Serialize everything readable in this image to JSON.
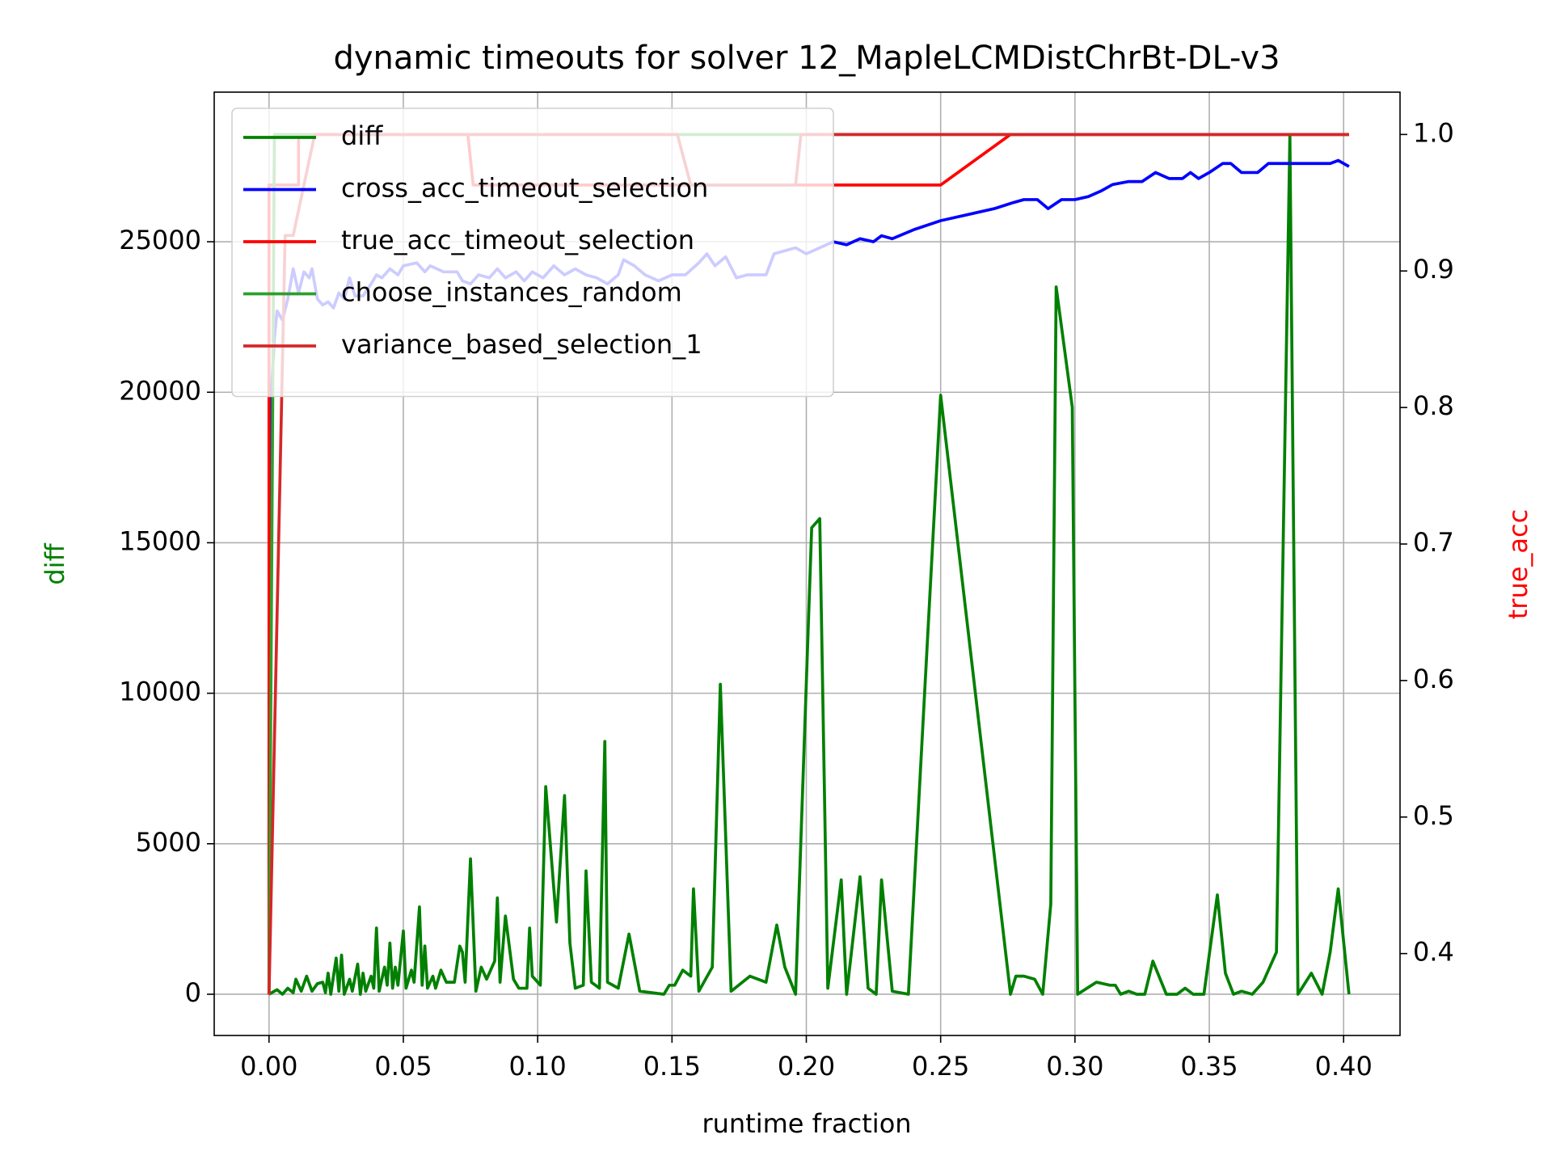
{
  "chart_data": {
    "type": "line",
    "title": "dynamic timeouts for solver 12_MapleLCMDistChrBt-DL-v3",
    "x_label": "runtime fraction",
    "y_label": "diff",
    "y2_label": "true_acc",
    "y_label_color": "#008000",
    "y2_label_color": "#ff0000",
    "xlim": [
      -0.0204,
      0.421
    ],
    "ylim": [
      -1370,
      29970
    ],
    "y2lim": [
      0.34,
      1.031
    ],
    "xticks": [
      {
        "value": 0,
        "label": "0.00"
      },
      {
        "value": 0.05,
        "label": "0.05"
      },
      {
        "value": 0.1,
        "label": "0.10"
      },
      {
        "value": 0.15,
        "label": "0.15"
      },
      {
        "value": 0.2,
        "label": "0.20"
      },
      {
        "value": 0.25,
        "label": "0.25"
      },
      {
        "value": 0.3,
        "label": "0.30"
      },
      {
        "value": 0.35,
        "label": "0.35"
      },
      {
        "value": 0.4,
        "label": "0.40"
      }
    ],
    "yticks": [
      0,
      5000,
      10000,
      15000,
      20000,
      25000
    ],
    "y2ticks": [
      0.4,
      0.5,
      0.6,
      0.7,
      0.8,
      0.9,
      {
        "value": 1,
        "label": "1.0"
      }
    ],
    "grid": true,
    "legend": "upper left",
    "series": [
      {
        "name": "diff",
        "color": "#008000",
        "axis": "y",
        "x": [
          0,
          0.003,
          0.005,
          0.007,
          0.009,
          0.01,
          0.012,
          0.014,
          0.016,
          0.018,
          0.02,
          0.021,
          0.022,
          0.023,
          0.025,
          0.026,
          0.027,
          0.028,
          0.03,
          0.031,
          0.033,
          0.034,
          0.035,
          0.036,
          0.038,
          0.039,
          0.04,
          0.041,
          0.043,
          0.044,
          0.045,
          0.046,
          0.047,
          0.048,
          0.05,
          0.051,
          0.053,
          0.054,
          0.056,
          0.057,
          0.058,
          0.059,
          0.061,
          0.062,
          0.064,
          0.066,
          0.069,
          0.071,
          0.072,
          0.073,
          0.075,
          0.077,
          0.079,
          0.081,
          0.084,
          0.085,
          0.086,
          0.088,
          0.091,
          0.093,
          0.096,
          0.097,
          0.098,
          0.101,
          0.103,
          0.107,
          0.11,
          0.112,
          0.114,
          0.117,
          0.118,
          0.12,
          0.123,
          0.125,
          0.126,
          0.13,
          0.134,
          0.138,
          0.147,
          0.149,
          0.151,
          0.154,
          0.157,
          0.158,
          0.16,
          0.165,
          0.168,
          0.172,
          0.179,
          0.185,
          0.189,
          0.192,
          0.196,
          0.202,
          0.205,
          0.208,
          0.213,
          0.215,
          0.22,
          0.223,
          0.226,
          0.228,
          0.232,
          0.238,
          0.25,
          0.276,
          0.278,
          0.281,
          0.285,
          0.288,
          0.291,
          0.293,
          0.299,
          0.301,
          0.308,
          0.313,
          0.315,
          0.317,
          0.32,
          0.323,
          0.326,
          0.329,
          0.334,
          0.338,
          0.341,
          0.344,
          0.348,
          0.353,
          0.356,
          0.359,
          0.362,
          0.366,
          0.37,
          0.375,
          0.38,
          0.383,
          0.388,
          0.392,
          0.395,
          0.398,
          0.402
        ],
        "values": [
          0,
          150,
          0,
          200,
          50,
          500,
          100,
          600,
          100,
          350,
          400,
          50,
          700,
          0,
          1200,
          100,
          1300,
          0,
          500,
          100,
          1000,
          0,
          700,
          100,
          600,
          200,
          2200,
          100,
          900,
          300,
          1700,
          200,
          900,
          300,
          2100,
          200,
          800,
          400,
          2900,
          300,
          1600,
          200,
          600,
          200,
          800,
          400,
          400,
          1600,
          1400,
          400,
          4500,
          100,
          900,
          500,
          1100,
          3200,
          400,
          2600,
          500,
          200,
          200,
          2200,
          600,
          300,
          6900,
          2400,
          6600,
          1700,
          200,
          300,
          4100,
          400,
          200,
          8400,
          400,
          200,
          2000,
          100,
          0,
          300,
          300,
          800,
          600,
          3500,
          100,
          900,
          10300,
          100,
          600,
          400,
          2300,
          900,
          0,
          15500,
          15800,
          200,
          3800,
          0,
          3900,
          200,
          0,
          3800,
          100,
          0,
          19900,
          0,
          600,
          600,
          500,
          0,
          3000,
          23500,
          19500,
          0,
          400,
          300,
          300,
          0,
          100,
          0,
          0,
          1100,
          0,
          0,
          200,
          0,
          0,
          3300,
          700,
          0,
          100,
          0,
          400,
          1400,
          28500,
          0,
          700,
          0,
          1400,
          3500,
          0
        ]
      },
      {
        "name": "cross_acc_timeout_selection",
        "color": "#0000ff",
        "axis": "y",
        "x": [
          0,
          0.0005,
          0.002,
          0.003,
          0.005,
          0.007,
          0.009,
          0.011,
          0.013,
          0.015,
          0.016,
          0.018,
          0.02,
          0.022,
          0.024,
          0.026,
          0.028,
          0.03,
          0.032,
          0.035,
          0.038,
          0.04,
          0.042,
          0.045,
          0.048,
          0.05,
          0.055,
          0.058,
          0.06,
          0.065,
          0.07,
          0.072,
          0.075,
          0.078,
          0.082,
          0.085,
          0.088,
          0.092,
          0.095,
          0.098,
          0.102,
          0.106,
          0.11,
          0.114,
          0.118,
          0.122,
          0.126,
          0.13,
          0.132,
          0.136,
          0.14,
          0.145,
          0.15,
          0.155,
          0.16,
          0.163,
          0.166,
          0.17,
          0.174,
          0.178,
          0.185,
          0.188,
          0.192,
          0.196,
          0.2,
          0.205,
          0.21,
          0.215,
          0.22,
          0.225,
          0.228,
          0.232,
          0.24,
          0.25,
          0.26,
          0.27,
          0.277,
          0.281,
          0.286,
          0.29,
          0.295,
          0.3,
          0.305,
          0.31,
          0.314,
          0.32,
          0.325,
          0.33,
          0.335,
          0.34,
          0.343,
          0.346,
          0.35,
          0.355,
          0.358,
          0.362,
          0.368,
          0.372,
          0.38,
          0.388,
          0.395,
          0.398,
          0.402
        ],
        "values": [
          9600,
          19300,
          21800,
          22700,
          22400,
          23100,
          24100,
          23300,
          24000,
          23800,
          24100,
          23100,
          22900,
          23000,
          22800,
          23300,
          23100,
          23800,
          23200,
          23200,
          23600,
          23900,
          23800,
          24100,
          23900,
          24200,
          24300,
          24000,
          24200,
          24000,
          24000,
          23700,
          23600,
          23900,
          23800,
          24100,
          23800,
          24000,
          23700,
          24000,
          23800,
          24200,
          23900,
          24100,
          23900,
          23800,
          23600,
          23900,
          24400,
          24200,
          23900,
          23700,
          23900,
          23900,
          24300,
          24600,
          24200,
          24500,
          23800,
          23900,
          23900,
          24600,
          24700,
          24800,
          24600,
          24800,
          25000,
          24900,
          25100,
          25000,
          25200,
          25100,
          25400,
          25700,
          25900,
          26100,
          26300,
          26400,
          26400,
          26100,
          26400,
          26400,
          26500,
          26700,
          26900,
          27000,
          27000,
          27300,
          27100,
          27100,
          27300,
          27100,
          27300,
          27600,
          27600,
          27300,
          27300,
          27600,
          27600,
          27600,
          27600,
          27700,
          27500
        ]
      },
      {
        "name": "true_acc_timeout_selection",
        "color": "#ff0000",
        "axis": "y2",
        "x": [
          0,
          0,
          0.011,
          0.011,
          0.074,
          0.076,
          0.25,
          0.276,
          0.402
        ],
        "values": [
          0.37,
          0.963,
          0.963,
          1,
          1,
          0.963,
          0.963,
          1,
          1
        ]
      },
      {
        "name": "choose_instances_random",
        "color": "#2ca02c",
        "axis": "y2",
        "x": [
          0,
          0.002,
          0.402
        ],
        "values": [
          0.37,
          1,
          1
        ]
      },
      {
        "name": "variance_based_selection_1",
        "color": "#d62728",
        "axis": "y2",
        "x": [
          0,
          0.006,
          0.009,
          0.017,
          0.152,
          0.157,
          0.196,
          0.198,
          0.402
        ],
        "values": [
          0.37,
          0.926,
          0.926,
          1,
          1,
          0.963,
          0.963,
          1,
          1
        ]
      }
    ]
  }
}
